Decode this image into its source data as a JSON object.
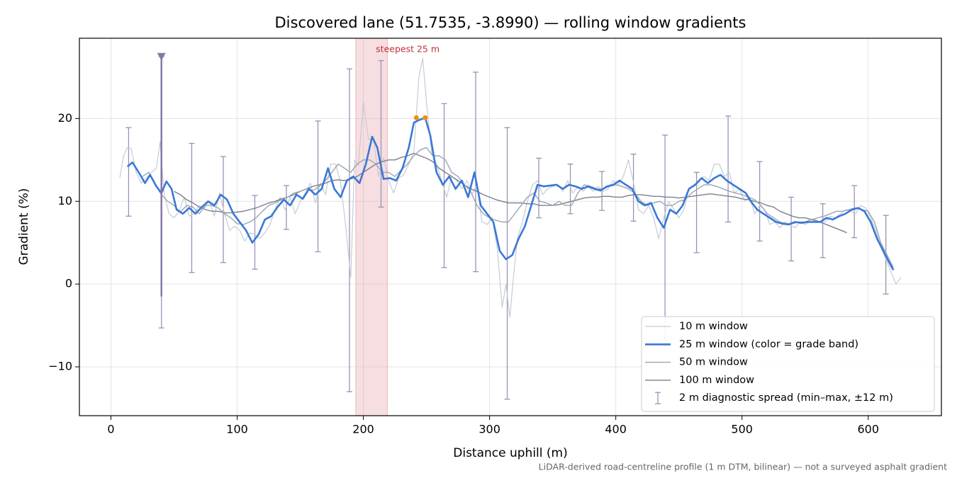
{
  "chart_data": {
    "type": "line",
    "title": "Discovered lane (51.7535, -3.8990) — rolling window gradients",
    "x_label": "Distance uphill (m)",
    "y_label": "Gradient (%)",
    "footnote": "LiDAR-derived road-centreline profile (1 m DTM, bilinear) — not a surveyed asphalt gradient",
    "xlim": [
      -25,
      658
    ],
    "ylim": [
      -15.9,
      29.7
    ],
    "xticks": [
      0,
      100,
      200,
      300,
      400,
      500,
      600
    ],
    "yticks": [
      {
        "value": -10,
        "label": "−10"
      },
      0,
      10,
      20
    ],
    "grid": true,
    "legend": "lower right",
    "highlight": {
      "label": "steepest 25 m",
      "xmin": 194,
      "xmax": 219,
      "color": "#e8a0a8"
    },
    "peak_points": {
      "x": [
        242,
        249
      ],
      "values": [
        20.1,
        20.1
      ],
      "color": "#f0900a"
    },
    "marker": {
      "x": 40,
      "value": 27.5,
      "color": "#8878a8"
    },
    "series": [
      {
        "name": "10 m window",
        "color": "#c5cbd6",
        "width": 1.2,
        "x": [
          7,
          10,
          13,
          16,
          20,
          24,
          28,
          32,
          36,
          39,
          42,
          46,
          50,
          54,
          58,
          62,
          66,
          70,
          74,
          78,
          82,
          86,
          90,
          94,
          98,
          102,
          106,
          110,
          114,
          118,
          122,
          126,
          130,
          134,
          138,
          142,
          146,
          150,
          154,
          158,
          162,
          166,
          170,
          174,
          178,
          182,
          186,
          190,
          193,
          196,
          200,
          204,
          208,
          212,
          216,
          220,
          224,
          228,
          232,
          236,
          240,
          244,
          247,
          250,
          254,
          258,
          262,
          266,
          270,
          274,
          278,
          282,
          286,
          290,
          294,
          298,
          302,
          306,
          310,
          313,
          316,
          319,
          322,
          326,
          330,
          334,
          338,
          342,
          346,
          350,
          354,
          358,
          362,
          366,
          370,
          374,
          378,
          382,
          386,
          390,
          394,
          398,
          402,
          406,
          410,
          414,
          418,
          422,
          426,
          430,
          434,
          438,
          442,
          446,
          450,
          454,
          458,
          462,
          466,
          470,
          474,
          478,
          482,
          486,
          490,
          494,
          498,
          502,
          506,
          510,
          514,
          518,
          522,
          526,
          530,
          534,
          538,
          542,
          546,
          550,
          554,
          558,
          562,
          566,
          570,
          574,
          578,
          582,
          586,
          590,
          594,
          598,
          602,
          606,
          610,
          614,
          618,
          622,
          626
        ],
        "values": [
          12.8,
          15.5,
          16.5,
          16.4,
          13.5,
          12.2,
          12.8,
          13.5,
          14,
          17.2,
          11,
          8.5,
          8,
          8.8,
          10.5,
          8.2,
          8.5,
          9.5,
          9.2,
          10,
          8.2,
          11,
          8.5,
          6.5,
          7,
          6.5,
          5.2,
          6.2,
          6,
          5.5,
          6.2,
          7.2,
          9,
          10.5,
          9,
          10.5,
          8.5,
          10,
          11,
          12.2,
          9.8,
          12.2,
          10.8,
          14.5,
          14.5,
          12.2,
          7,
          0.8,
          15,
          14.3,
          22,
          17.5,
          17.5,
          13,
          15.3,
          12.5,
          11,
          12.8,
          13.2,
          14.5,
          16,
          25,
          27.3,
          22,
          16,
          14.5,
          12.5,
          10.5,
          13,
          12.5,
          11.5,
          12.5,
          10.8,
          12,
          7.5,
          7.2,
          8,
          4.5,
          -2.8,
          0,
          -4,
          1,
          5.5,
          7.5,
          10,
          12,
          12.5,
          10.8,
          11.5,
          11.8,
          12,
          11.2,
          12.5,
          11,
          11.8,
          11.2,
          11.8,
          11.2,
          11.8,
          11.2,
          11.5,
          12.5,
          12,
          13,
          15,
          12.3,
          9,
          8.5,
          9.5,
          8,
          5.5,
          8,
          10,
          9,
          8,
          9,
          11.5,
          12,
          12.5,
          13,
          12.5,
          14.5,
          14.5,
          13,
          13.5,
          11,
          11.5,
          10,
          10.5,
          8.5,
          9.5,
          9,
          7.2,
          7.5,
          6.8,
          7.5,
          7.2,
          6.8,
          7.5,
          7.2,
          7.5,
          7.8,
          7.5,
          7.5,
          8.2,
          8,
          8.5,
          9,
          8.8,
          8.5,
          9.5,
          9.2,
          8,
          6.5,
          4.5,
          3,
          1.5,
          0,
          0.8
        ]
      },
      {
        "name": "25 m window (color = grade band)",
        "color": "#3a78d6",
        "width": 2.6,
        "x": [
          13,
          17,
          22,
          27,
          31,
          36,
          40,
          44,
          48,
          52,
          57,
          62,
          67,
          72,
          77,
          82,
          87,
          92,
          97,
          102,
          107,
          112,
          117,
          122,
          127,
          132,
          137,
          142,
          147,
          152,
          157,
          162,
          167,
          172,
          177,
          182,
          187,
          192,
          197,
          202,
          207,
          211,
          216,
          221,
          226,
          231,
          236,
          240,
          244,
          249,
          253,
          258,
          263,
          268,
          273,
          278,
          283,
          288,
          293,
          298,
          303,
          308,
          313,
          318,
          323,
          328,
          333,
          338,
          343,
          348,
          353,
          358,
          363,
          368,
          373,
          378,
          383,
          388,
          393,
          398,
          403,
          408,
          413,
          418,
          423,
          428,
          433,
          438,
          443,
          448,
          453,
          458,
          463,
          468,
          473,
          478,
          483,
          488,
          493,
          498,
          503,
          507,
          512,
          517,
          522,
          527,
          532,
          537,
          542,
          547,
          552,
          557,
          562,
          567,
          572,
          577,
          582,
          587,
          592,
          597,
          602,
          607,
          612,
          617,
          620
        ],
        "values": [
          14.2,
          14.7,
          13.5,
          12.2,
          13.2,
          11.8,
          11,
          12.4,
          11.5,
          9,
          8.5,
          9.2,
          8.5,
          9.3,
          10,
          9.5,
          10.8,
          10.2,
          8.5,
          7.5,
          6.5,
          5,
          6,
          7.8,
          8.2,
          9.3,
          10.2,
          9.5,
          10.8,
          10.3,
          11.5,
          10.8,
          11.5,
          14,
          11.5,
          10.5,
          12.5,
          13,
          12.2,
          14.5,
          17.8,
          16.5,
          12.7,
          12.8,
          12.5,
          14,
          16.5,
          19.5,
          19.8,
          20.1,
          18,
          13.5,
          12,
          13,
          11.5,
          12.5,
          10.5,
          13.5,
          9.5,
          8.5,
          7.5,
          4,
          3,
          3.5,
          5.5,
          7,
          9.5,
          12,
          11.8,
          11.9,
          12,
          11.5,
          12,
          11.8,
          11.5,
          11.8,
          11.5,
          11.3,
          11.8,
          12,
          12.5,
          12,
          11.5,
          10,
          9.5,
          9.8,
          8,
          6.8,
          9,
          8.5,
          9.5,
          11.5,
          12,
          12.8,
          12.2,
          12.8,
          13.2,
          12.5,
          12,
          11.5,
          11,
          10,
          9,
          8.5,
          8,
          7.5,
          7.3,
          7.2,
          7.5,
          7.4,
          7.5,
          7.5,
          7.5,
          8,
          7.8,
          8.2,
          8.5,
          9,
          9.2,
          8.8,
          7.5,
          5.5,
          4,
          2.5,
          1.7
        ]
      },
      {
        "name": "50 m window",
        "color": "#9aa5b4",
        "width": 1.4,
        "x": [
          25,
          30,
          35,
          40,
          45,
          50,
          55,
          60,
          65,
          70,
          75,
          80,
          85,
          90,
          95,
          100,
          105,
          110,
          115,
          120,
          125,
          130,
          135,
          140,
          145,
          150,
          155,
          160,
          165,
          170,
          175,
          180,
          185,
          190,
          195,
          200,
          205,
          210,
          215,
          220,
          225,
          230,
          235,
          240,
          245,
          250,
          255,
          260,
          265,
          270,
          275,
          280,
          285,
          290,
          295,
          300,
          305,
          310,
          315,
          320,
          325,
          330,
          335,
          340,
          345,
          350,
          355,
          360,
          365,
          370,
          375,
          380,
          385,
          390,
          395,
          400,
          405,
          410,
          415,
          420,
          425,
          430,
          435,
          440,
          445,
          450,
          455,
          460,
          465,
          470,
          475,
          480,
          485,
          490,
          495,
          500,
          505,
          510,
          515,
          520,
          525,
          530,
          535,
          540,
          545,
          550,
          555,
          560,
          565,
          570,
          575,
          580,
          585,
          590,
          595,
          600,
          605,
          610,
          615,
          620
        ],
        "values": [
          13,
          13.5,
          12,
          10.8,
          10,
          9.5,
          8.7,
          9.5,
          9.3,
          8.5,
          9.5,
          9.5,
          9.2,
          8.5,
          8,
          7.3,
          7.2,
          7.5,
          8,
          8.8,
          9.5,
          9.8,
          10.2,
          10.5,
          11,
          11.2,
          11.5,
          11.3,
          11.8,
          12.5,
          13.5,
          14.5,
          14,
          13.5,
          14.5,
          15,
          15,
          14.5,
          13.5,
          13.5,
          13,
          13.8,
          14.5,
          15.5,
          16.2,
          16.5,
          15.5,
          15.5,
          15,
          13.5,
          13,
          12,
          11.2,
          9.5,
          8.5,
          8,
          7.7,
          7.5,
          7.5,
          8.5,
          9.5,
          10.5,
          11,
          10,
          9.8,
          9.5,
          10,
          9.5,
          9.5,
          11,
          12,
          11.8,
          11.5,
          11.5,
          11.8,
          12,
          11.8,
          11.5,
          11,
          10,
          9.5,
          9.8,
          10,
          9.5,
          9.5,
          10,
          10.2,
          11,
          11.5,
          12,
          12,
          11.8,
          11.5,
          11.2,
          11,
          10.8,
          10.5,
          10.2,
          9.5,
          8.5,
          8,
          7.5,
          7.3,
          7.3,
          7.5,
          7.5,
          7.8,
          8,
          8.2,
          8.5,
          8.8,
          8.8,
          9,
          9.2,
          9,
          8.8,
          7.5,
          5,
          3.5,
          2
        ]
      },
      {
        "name": "100 m window",
        "color": "#7a808c",
        "width": 1.4,
        "x": [
          50,
          55,
          60,
          65,
          70,
          75,
          80,
          85,
          90,
          95,
          100,
          105,
          110,
          115,
          120,
          125,
          130,
          135,
          140,
          145,
          150,
          155,
          160,
          165,
          170,
          175,
          180,
          185,
          190,
          195,
          200,
          205,
          210,
          215,
          220,
          225,
          230,
          235,
          240,
          245,
          250,
          255,
          260,
          265,
          270,
          275,
          280,
          285,
          290,
          295,
          300,
          305,
          310,
          315,
          320,
          325,
          330,
          335,
          340,
          345,
          350,
          355,
          360,
          365,
          370,
          375,
          380,
          385,
          390,
          395,
          400,
          405,
          410,
          415,
          420,
          425,
          430,
          435,
          440,
          445,
          450,
          455,
          460,
          465,
          470,
          475,
          480,
          485,
          490,
          495,
          500,
          505,
          510,
          515,
          520,
          525,
          530,
          535,
          540,
          545,
          550,
          555,
          560,
          565,
          570,
          575,
          580,
          583
        ],
        "values": [
          11.2,
          10.8,
          10.2,
          9.8,
          9.3,
          9,
          8.8,
          8.8,
          8.6,
          8.6,
          8.7,
          8.8,
          9,
          9.2,
          9.5,
          9.8,
          10,
          10.3,
          10.5,
          10.8,
          11.2,
          11.5,
          11.8,
          12,
          12.2,
          12.5,
          12.6,
          12.5,
          12.7,
          13,
          13.5,
          14,
          14.5,
          14.8,
          15,
          15,
          15.3,
          15.5,
          15.8,
          15.5,
          15.2,
          14.8,
          14,
          13.5,
          13,
          12.5,
          12,
          11.5,
          11.2,
          10.8,
          10.5,
          10.2,
          10,
          9.8,
          9.8,
          9.8,
          9.7,
          9.7,
          9.5,
          9.5,
          9.5,
          9.6,
          9.8,
          10,
          10.2,
          10.4,
          10.5,
          10.5,
          10.6,
          10.6,
          10.5,
          10.5,
          10.7,
          10.8,
          10.8,
          10.7,
          10.6,
          10.6,
          10.5,
          10.5,
          10.4,
          10.5,
          10.6,
          10.7,
          10.8,
          10.9,
          10.8,
          10.7,
          10.6,
          10.5,
          10.3,
          10.2,
          10,
          9.8,
          9.5,
          9.3,
          8.8,
          8.5,
          8.2,
          8,
          8,
          7.8,
          7.6,
          7.3,
          7,
          6.7,
          6.4,
          6.2
        ]
      }
    ],
    "spread": {
      "name": "2 m diagnostic spread (min–max, ±12 m)",
      "color": "#9a93b5",
      "x": [
        14,
        40,
        64,
        89,
        114,
        139,
        164,
        189,
        214,
        264,
        289,
        314,
        339,
        364,
        389,
        414,
        439,
        464,
        489,
        514,
        539,
        564,
        589,
        614
      ],
      "low": [
        8.2,
        -5.3,
        1.4,
        2.6,
        1.8,
        6.6,
        3.9,
        -13,
        9.3,
        2,
        1.5,
        -13.9,
        8,
        8.5,
        8.9,
        7.6,
        -7.5,
        3.8,
        7.5,
        5.2,
        2.8,
        3.2,
        5.6,
        -1.2
      ],
      "high": [
        18.9,
        27.5,
        17,
        15.4,
        10.7,
        11.9,
        19.7,
        26,
        27,
        21.8,
        25.6,
        18.9,
        15.2,
        14.5,
        13.6,
        15.7,
        18,
        13.5,
        20.3,
        14.8,
        10.5,
        9.7,
        11.9,
        8.3
      ]
    }
  }
}
